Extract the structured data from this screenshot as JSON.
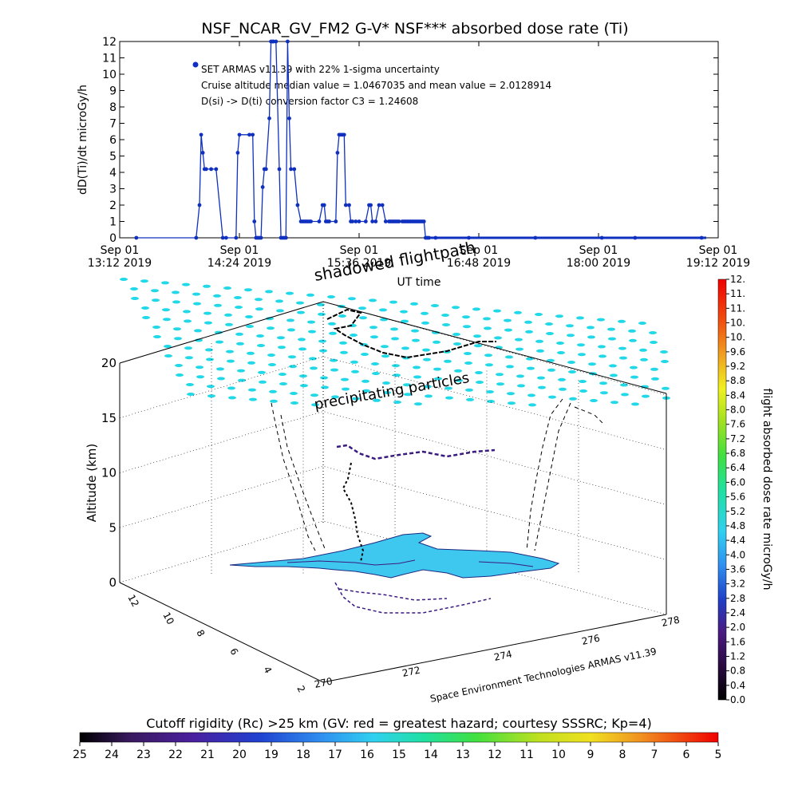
{
  "chart_data": [
    {
      "type": "line",
      "title": "NSF_NCAR_GV_FM2 G-V* NSF*** absorbed dose rate (Ti)",
      "xlabel": "UT time",
      "ylabel": "dD(Ti)/dt microGy/h",
      "ylim": [
        0,
        12
      ],
      "yticks": [
        "0",
        "1",
        "2",
        "3",
        "4",
        "5",
        "6",
        "7",
        "8",
        "9",
        "10",
        "11",
        "12"
      ],
      "xlim": [
        "13:12",
        "19:12"
      ],
      "xticks": [
        {
          "date": "Sep 01",
          "time": "13:12 2019"
        },
        {
          "date": "Sep 01",
          "time": "14:24 2019"
        },
        {
          "date": "Sep 01",
          "time": "15:36 2019"
        },
        {
          "date": "Sep 01",
          "time": "16:48 2019"
        },
        {
          "date": "Sep 01",
          "time": "18:00 2019"
        },
        {
          "date": "Sep 01",
          "time": "19:12 2019"
        }
      ],
      "annotations": [
        "SET ARMAS v11.39 with 22% 1-sigma uncertainty",
        "Cruise altitude median value = 1.0467035 and mean value = 2.0128914",
        "D(si) -> D(ti) conversion factor C3 = 1.24608"
      ],
      "series": [
        {
          "color": "#1030c0",
          "x_minutes": [
            0,
            36,
            38,
            39,
            40,
            41,
            42,
            45,
            48,
            52,
            54,
            60,
            61,
            62,
            68,
            70,
            71,
            72,
            73,
            74,
            75,
            76,
            77,
            78,
            80,
            81,
            82,
            82.5,
            84,
            86,
            87,
            88,
            89,
            90,
            91,
            92,
            93,
            95,
            97,
            99,
            100,
            101,
            102,
            103,
            104,
            105,
            110,
            112,
            113,
            114,
            115,
            116,
            120,
            121,
            122,
            123,
            124,
            125,
            126,
            128,
            129,
            130,
            132,
            134,
            138,
            140,
            141,
            142,
            144,
            146,
            148,
            150,
            152,
            153,
            154,
            155,
            156,
            157,
            158,
            160,
            161,
            162,
            163,
            164,
            165,
            166,
            167,
            168,
            169,
            170,
            171,
            172,
            173,
            174,
            175,
            176,
            180,
            200,
            240,
            280,
            300,
            340
          ],
          "y": [
            0,
            0,
            2,
            6.3,
            5.2,
            4.2,
            4.2,
            4.2,
            4.2,
            0,
            0,
            0,
            5.2,
            6.3,
            6.3,
            6.3,
            1,
            0,
            0,
            0,
            0,
            3.1,
            4.2,
            4.2,
            7.3,
            12,
            12,
            12,
            12,
            4.2,
            0,
            0,
            0,
            0,
            12,
            7.3,
            4.2,
            4.2,
            2,
            1,
            1,
            1,
            1,
            1,
            1,
            1,
            1,
            2,
            2,
            1,
            1,
            1,
            1,
            5.2,
            6.3,
            6.3,
            6.3,
            6.3,
            2,
            2,
            1,
            1,
            1,
            1,
            1,
            2,
            2,
            1,
            1,
            2,
            2,
            1,
            1,
            1,
            1,
            1,
            1,
            1,
            1,
            1,
            1,
            1,
            1,
            1,
            1,
            1,
            1,
            1,
            1,
            1,
            1,
            1,
            1,
            0,
            0,
            0,
            0,
            0,
            0,
            0,
            0,
            0
          ]
        }
      ]
    },
    {
      "type": "scatter",
      "title": "shadowed flightpath",
      "subtitle": "precipitating particles",
      "zlabel": "Altitude (km)",
      "zlim": [
        0,
        20
      ],
      "zticks": [
        "0",
        "5",
        "10",
        "15",
        "20"
      ],
      "xticks": [
        "272",
        "274",
        "276",
        "278"
      ],
      "x_extra_tick": "270",
      "yticks": [
        "2",
        "4",
        "6",
        "8",
        "10",
        "12"
      ],
      "credit": "Space Environment Technologies ARMAS v11.39"
    },
    {
      "type": "heatmap",
      "title": "flight absorbed dose rate microGy/h",
      "range": [
        0,
        12
      ],
      "labels": [
        "0.0",
        "0.4",
        "0.8",
        "1.2",
        "1.6",
        "2.0",
        "2.4",
        "2.8",
        "3.2",
        "3.6",
        "4.0",
        "4.4",
        "4.8",
        "5.2",
        "5.6",
        "6.0",
        "6.4",
        "6.8",
        "7.2",
        "7.6",
        "8.0",
        "8.4",
        "8.8",
        "9.2",
        "9.6",
        "10.",
        "10.",
        "11.",
        "11.",
        "12."
      ]
    },
    {
      "type": "heatmap",
      "title": "Cutoff rigidity (Rc) >25 km (GV: red = greatest hazard; courtesy SSSRC; Kp=4)",
      "range": [
        25,
        5
      ],
      "labels": [
        "25",
        "24",
        "23",
        "22",
        "21",
        "20",
        "19",
        "18",
        "17",
        "16",
        "15",
        "14",
        "13",
        "12",
        "11",
        "10",
        "9",
        "8",
        "7",
        "6",
        "5"
      ]
    }
  ],
  "colors": {
    "line": "#1030c0",
    "particles": "#20d8e8",
    "ground": "#3ec8f0"
  }
}
